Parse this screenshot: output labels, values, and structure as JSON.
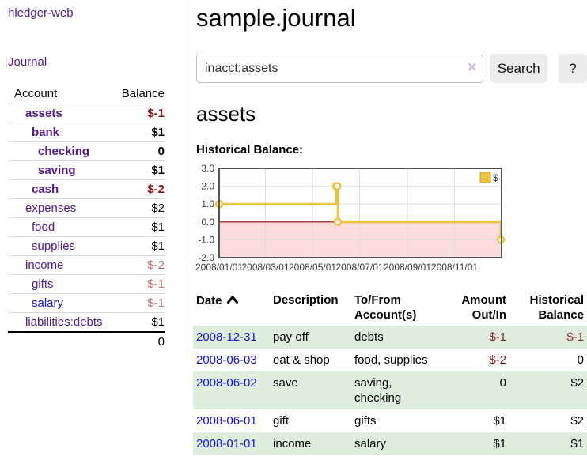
{
  "app": {
    "brand": "hledger-web"
  },
  "nav": {
    "journal": "Journal"
  },
  "sidebar": {
    "header": {
      "account": "Account",
      "balance": "Balance"
    },
    "accounts": [
      {
        "name": "assets",
        "indent": 1,
        "balance": "$-1",
        "in_current": true,
        "balance_tone": "deep-negative"
      },
      {
        "name": "bank",
        "indent": 2,
        "balance": "$1",
        "in_current": true,
        "balance_tone": "normal"
      },
      {
        "name": "checking",
        "indent": 3,
        "balance": "0",
        "in_current": true,
        "balance_tone": "normal"
      },
      {
        "name": "saving",
        "indent": 3,
        "balance": "$1",
        "in_current": true,
        "balance_tone": "normal"
      },
      {
        "name": "cash",
        "indent": 2,
        "balance": "$-2",
        "in_current": true,
        "balance_tone": "deep-negative"
      },
      {
        "name": "expenses",
        "indent": 1,
        "balance": "$2",
        "in_current": false,
        "balance_tone": "normal"
      },
      {
        "name": "food",
        "indent": 2,
        "balance": "$1",
        "in_current": false,
        "balance_tone": "normal"
      },
      {
        "name": "supplies",
        "indent": 2,
        "balance": "$1",
        "in_current": false,
        "balance_tone": "normal"
      },
      {
        "name": "income",
        "indent": 1,
        "balance": "$-2",
        "in_current": false,
        "balance_tone": "soft-negative"
      },
      {
        "name": "gifts",
        "indent": 2,
        "balance": "$-1",
        "in_current": false,
        "balance_tone": "soft-negative"
      },
      {
        "name": "salary",
        "indent": 2,
        "balance": "$-1",
        "in_current": false,
        "balance_tone": "soft-negative",
        "link_color": "blue"
      },
      {
        "name": "liabilities:debts",
        "indent": 1,
        "balance": "$1",
        "in_current": false,
        "balance_tone": "normal"
      }
    ],
    "total": "0"
  },
  "main": {
    "title": "sample.journal",
    "search": {
      "value": "inacct:assets",
      "clear_icon": "×",
      "button_label": "Search",
      "help_label": "?"
    },
    "account_heading": "assets",
    "chart_heading": "Historical Balance:"
  },
  "register": {
    "columns": [
      {
        "label": "Date",
        "align": "left",
        "sorted": "asc"
      },
      {
        "label": "Description",
        "align": "left"
      },
      {
        "label": "To/From Account(s)",
        "align": "left"
      },
      {
        "label": "Amount Out/In",
        "align": "right"
      },
      {
        "label": "Historical Balance",
        "align": "right"
      }
    ],
    "rows": [
      {
        "date": "2008-12-31",
        "description": "pay off",
        "accounts": "debts",
        "amount": "$-1",
        "amount_negative": true,
        "balance": "$-1",
        "balance_negative": true,
        "shaded": true
      },
      {
        "date": "2008-06-03",
        "description": "eat & shop",
        "accounts": "food, supplies",
        "amount": "$-2",
        "amount_negative": true,
        "balance": "0",
        "balance_negative": false,
        "shaded": false
      },
      {
        "date": "2008-06-02",
        "description": "save",
        "accounts": "saving, checking",
        "amount": "0",
        "amount_negative": false,
        "balance": "$2",
        "balance_negative": false,
        "shaded": true
      },
      {
        "date": "2008-06-01",
        "description": "gift",
        "accounts": "gifts",
        "amount": "$1",
        "amount_negative": false,
        "balance": "$2",
        "balance_negative": false,
        "shaded": false
      },
      {
        "date": "2008-01-01",
        "description": "income",
        "accounts": "salary",
        "amount": "$1",
        "amount_negative": false,
        "balance": "$1",
        "balance_negative": false,
        "shaded": true
      }
    ]
  },
  "chart_data": {
    "type": "line",
    "title": "Historical Balance",
    "legend": {
      "label": "$",
      "position": "top-right"
    },
    "style": "step",
    "x_range": [
      "2008-01-01",
      "2009-01-01"
    ],
    "ylim": [
      -2,
      3
    ],
    "yticks": [
      3.0,
      2.0,
      1.0,
      0.0,
      -1.0,
      -2.0
    ],
    "xticks": [
      {
        "date": "2008-01-01",
        "label": "2008/01/01"
      },
      {
        "date": "2008-03-01",
        "label": "2008/03/01"
      },
      {
        "date": "2008-05-01",
        "label": "2008/05/01"
      },
      {
        "date": "2008-07-01",
        "label": "2008/07/01"
      },
      {
        "date": "2008-09-01",
        "label": "2008/09/01"
      },
      {
        "date": "2008-11-01",
        "label": "2008/11/01"
      }
    ],
    "series": [
      {
        "name": "$",
        "points": [
          {
            "date": "2008-01-01",
            "value": 1
          },
          {
            "date": "2008-06-01",
            "value": 2
          },
          {
            "date": "2008-06-02",
            "value": 2
          },
          {
            "date": "2008-06-03",
            "value": 0
          },
          {
            "date": "2008-12-31",
            "value": -1
          }
        ]
      }
    ],
    "negative_region": true,
    "grid": true
  },
  "colors": {
    "link_purple": "#551A8B",
    "link_blue": "#1414E0",
    "negative_deep": "#8B1A1A",
    "negative_soft": "#C36F6F",
    "row_stripe_green": "#DDEEDD",
    "chart_gold": "#EDC240",
    "chart_gold_border": "#C9A22E",
    "chart_negative_fill": "#FBDCDC",
    "chart_zero_line": "#8B0B0B",
    "chart_border": "#545454",
    "chart_gridline": "#DCDCDC"
  }
}
